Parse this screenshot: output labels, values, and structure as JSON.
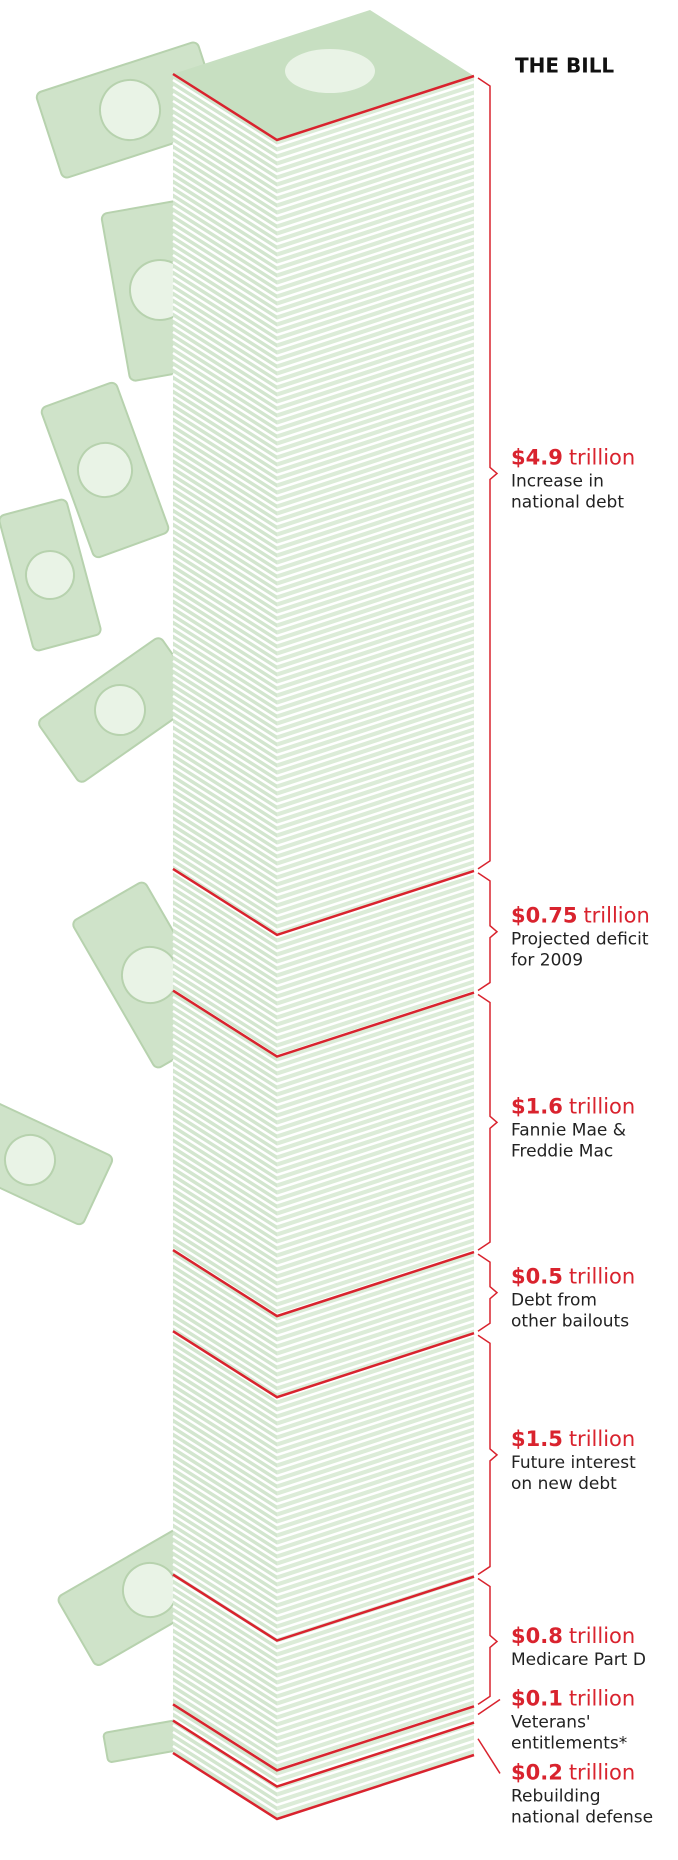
{
  "chart_data": {
    "type": "stack",
    "title": "THE BILL",
    "unit": "trillion",
    "color": "#d9232e",
    "values": [
      4.9,
      0.75,
      1.6,
      0.5,
      1.5,
      0.8,
      0.1,
      0.2
    ],
    "value_labels": [
      "$4.9",
      "$0.75",
      "$1.6",
      "$0.5",
      "$1.5",
      "$0.8",
      "$0.1",
      "$0.2"
    ],
    "labels": [
      [
        "Increase in",
        "national debt"
      ],
      [
        "Projected deficit",
        "for 2009"
      ],
      [
        "Fannie Mae &",
        "Freddie Mac"
      ],
      [
        "Debt from",
        "other bailouts"
      ],
      [
        "Future interest",
        "on new debt"
      ],
      [
        "Medicare Part D"
      ],
      [
        "Veterans'",
        "entitlements*"
      ],
      [
        "Rebuilding",
        "national defense"
      ]
    ]
  }
}
